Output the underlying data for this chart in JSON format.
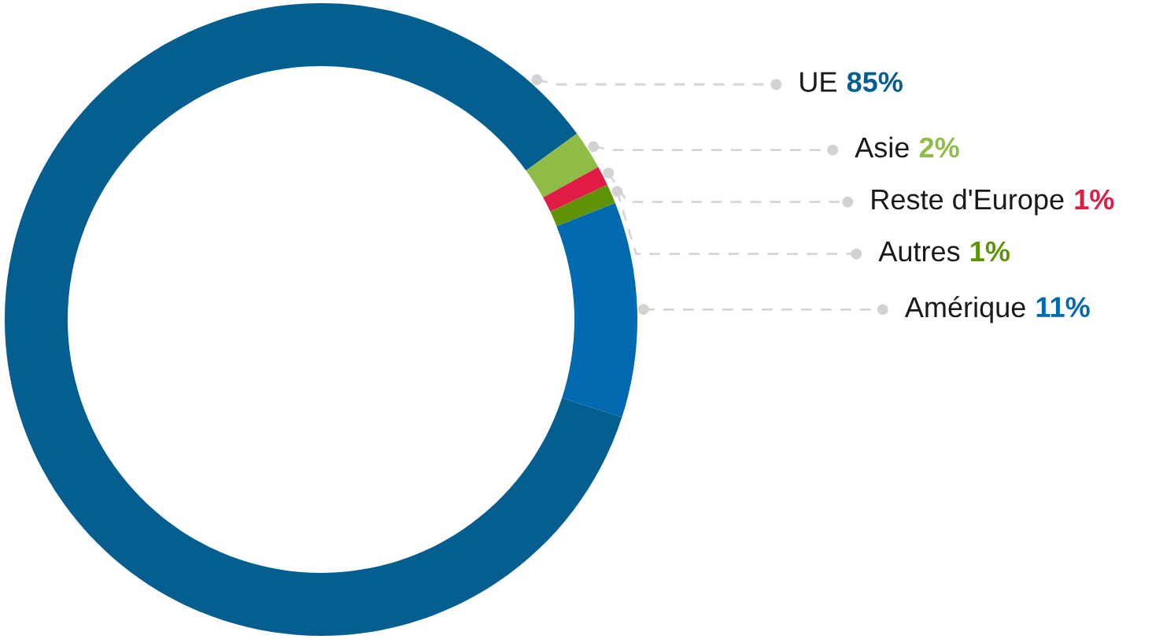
{
  "chart_data": {
    "type": "donut",
    "categories": [
      "UE",
      "Asie",
      "Reste d'Europe",
      "Autres",
      "Amérique"
    ],
    "values": [
      85,
      2,
      1,
      1,
      11
    ],
    "colors": [
      "#045e8f",
      "#8fbc45",
      "#e01b44",
      "#5f9307",
      "#0169b0"
    ],
    "value_labels": [
      "85%",
      "2%",
      "1%",
      "1%",
      "11%"
    ]
  }
}
